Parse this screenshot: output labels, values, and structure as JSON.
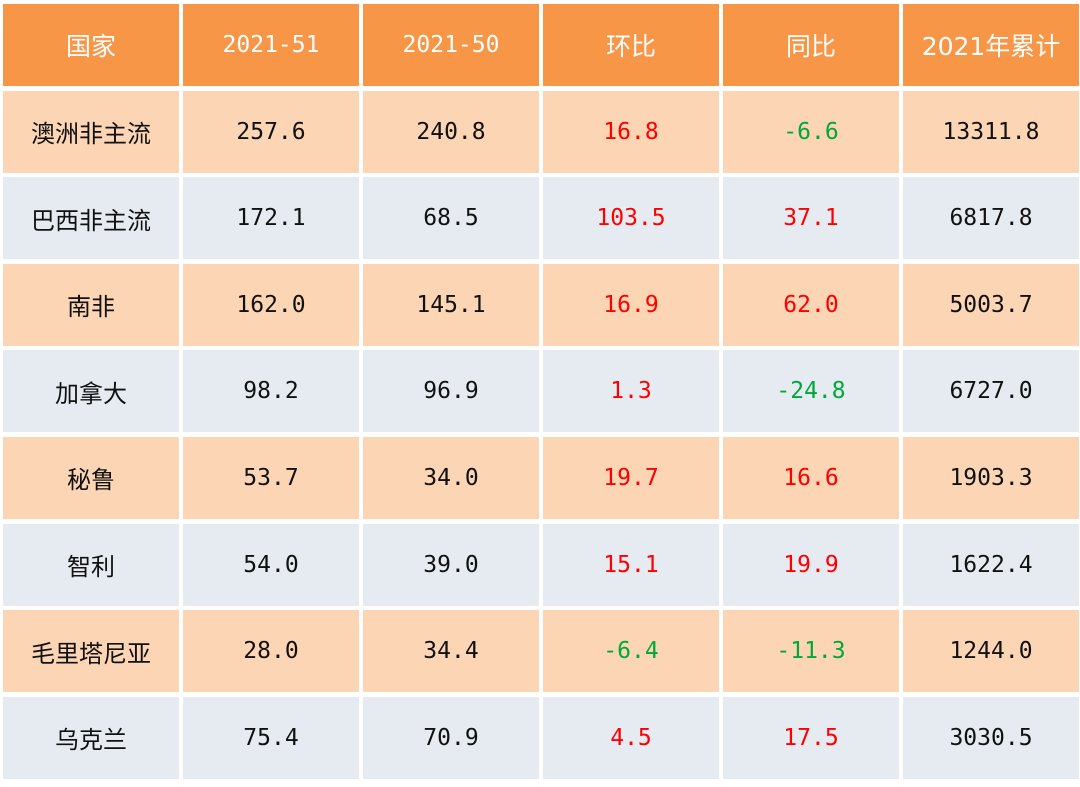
{
  "chart_data": {
    "type": "table",
    "columns": [
      "国家",
      "2021-51",
      "2021-50",
      "环比",
      "同比",
      "2021年累计"
    ],
    "rows": [
      {
        "country": "澳洲非主流",
        "w51": "257.6",
        "w50": "240.8",
        "wow": "16.8",
        "yoy": "-6.6",
        "cum": "13311.8"
      },
      {
        "country": "巴西非主流",
        "w51": "172.1",
        "w50": "68.5",
        "wow": "103.5",
        "yoy": "37.1",
        "cum": "6817.8"
      },
      {
        "country": "南非",
        "w51": "162.0",
        "w50": "145.1",
        "wow": "16.9",
        "yoy": "62.0",
        "cum": "5003.7"
      },
      {
        "country": "加拿大",
        "w51": "98.2",
        "w50": "96.9",
        "wow": "1.3",
        "yoy": "-24.8",
        "cum": "6727.0"
      },
      {
        "country": "秘鲁",
        "w51": "53.7",
        "w50": "34.0",
        "wow": "19.7",
        "yoy": "16.6",
        "cum": "1903.3"
      },
      {
        "country": "智利",
        "w51": "54.0",
        "w50": "39.0",
        "wow": "15.1",
        "yoy": "19.9",
        "cum": "1622.4"
      },
      {
        "country": "毛里塔尼亚",
        "w51": "28.0",
        "w50": "34.4",
        "wow": "-6.4",
        "yoy": "-11.3",
        "cum": "1244.0"
      },
      {
        "country": "乌克兰",
        "w51": "75.4",
        "w50": "70.9",
        "wow": "4.5",
        "yoy": "17.5",
        "cum": "3030.5"
      }
    ]
  },
  "colors": {
    "header_bg": "#f79646",
    "header_text": "#ffffff",
    "row_odd_bg": "#fcd5b5",
    "row_even_bg": "#e6ebf2",
    "positive": "#ff0000",
    "negative": "#00a83b"
  }
}
